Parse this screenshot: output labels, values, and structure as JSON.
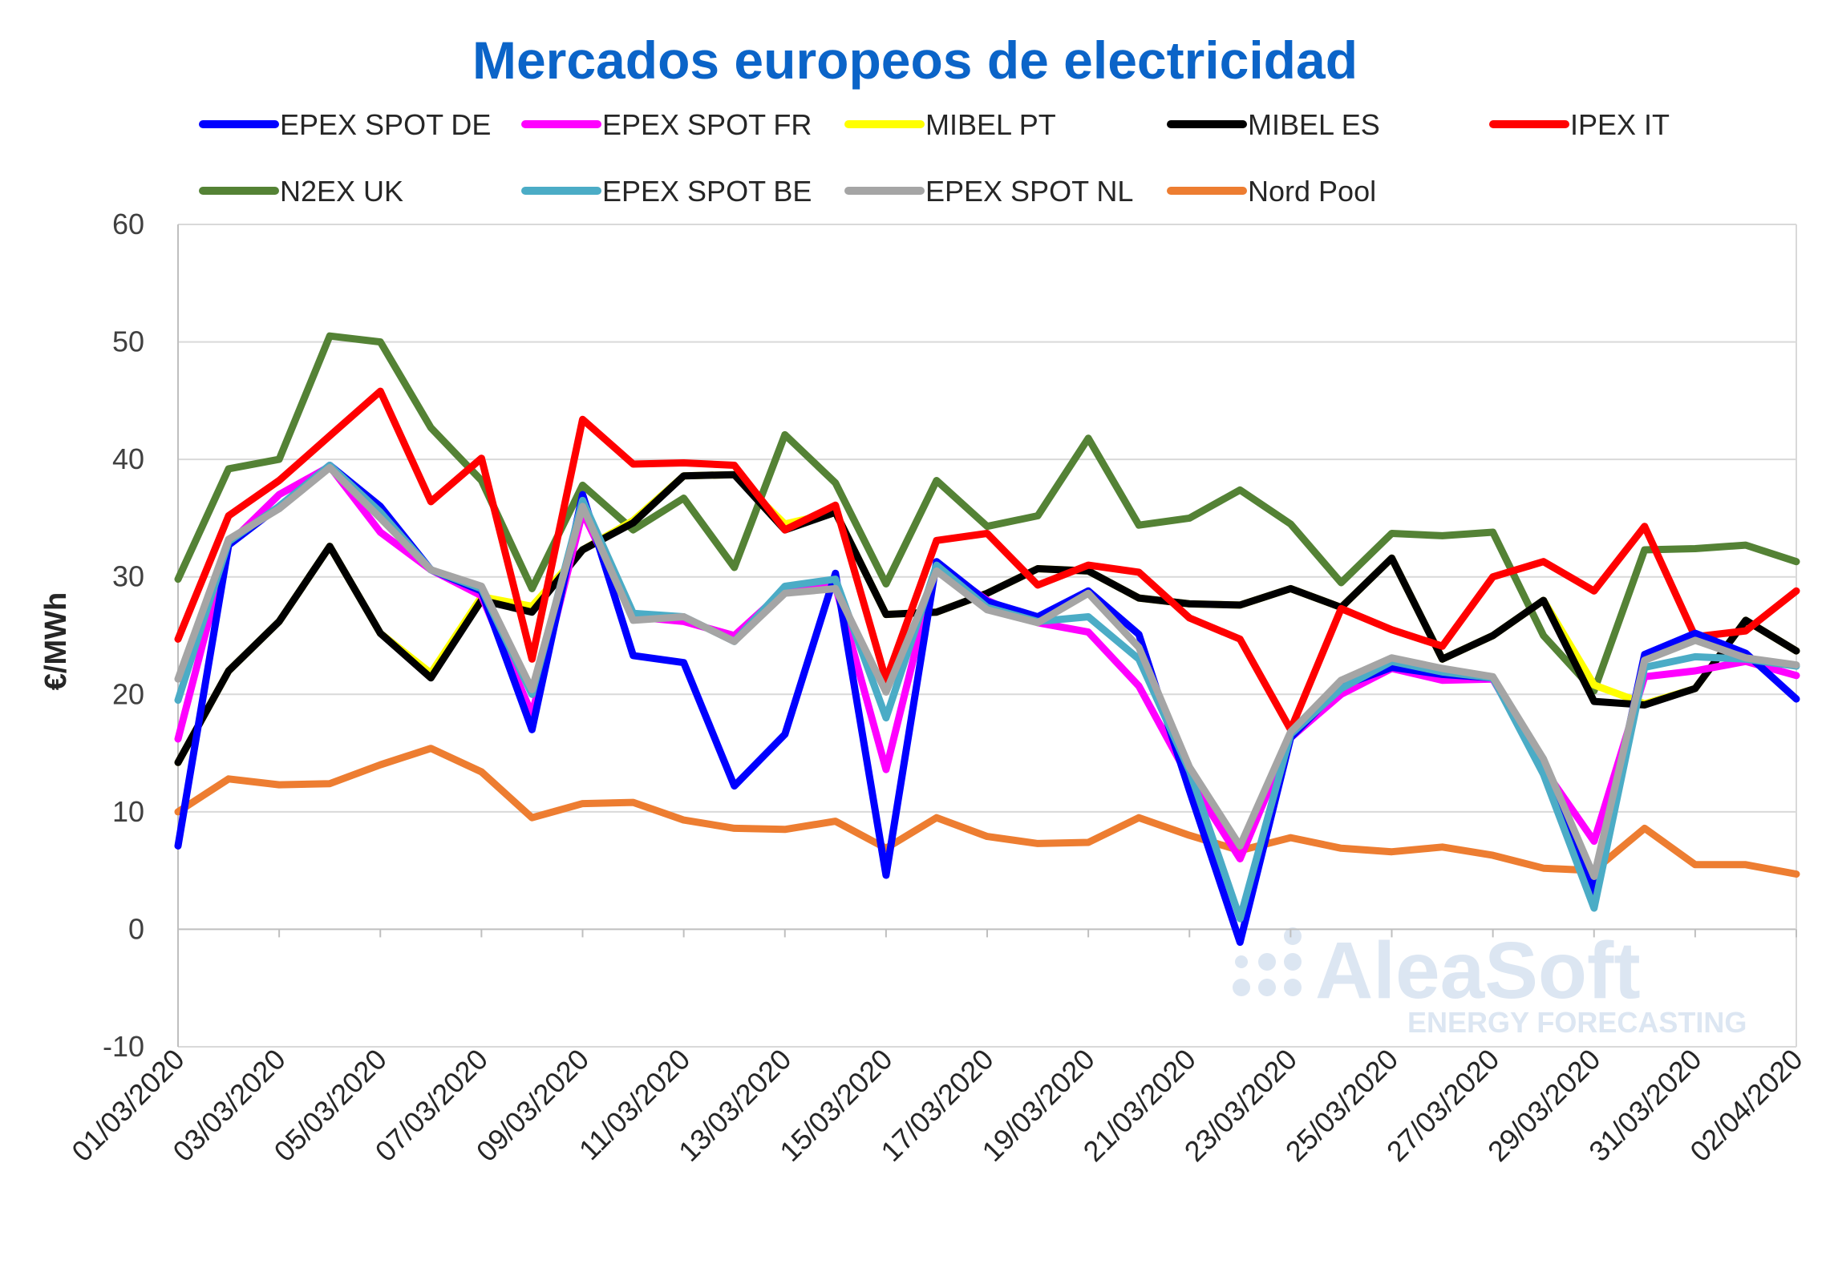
{
  "chart_data": {
    "type": "line",
    "title": "Mercados europeos de electricidad",
    "ylabel": "€/MWh",
    "xlabel": "",
    "ylim": [
      -10,
      60
    ],
    "yticks": [
      -10,
      0,
      10,
      20,
      30,
      40,
      50,
      60
    ],
    "grid": true,
    "legend_position": "top",
    "x": [
      "01/03/2020",
      "02/03/2020",
      "03/03/2020",
      "04/03/2020",
      "05/03/2020",
      "06/03/2020",
      "07/03/2020",
      "08/03/2020",
      "09/03/2020",
      "10/03/2020",
      "11/03/2020",
      "12/03/2020",
      "13/03/2020",
      "14/03/2020",
      "15/03/2020",
      "16/03/2020",
      "17/03/2020",
      "18/03/2020",
      "19/03/2020",
      "20/03/2020",
      "21/03/2020",
      "22/03/2020",
      "23/03/2020",
      "24/03/2020",
      "25/03/2020",
      "26/03/2020",
      "27/03/2020",
      "28/03/2020",
      "29/03/2020",
      "30/03/2020",
      "31/03/2020",
      "01/04/2020",
      "02/04/2020"
    ],
    "xtick_labels": [
      "01/03/2020",
      "03/03/2020",
      "05/03/2020",
      "07/03/2020",
      "09/03/2020",
      "11/03/2020",
      "13/03/2020",
      "15/03/2020",
      "17/03/2020",
      "19/03/2020",
      "21/03/2020",
      "23/03/2020",
      "25/03/2020",
      "27/03/2020",
      "29/03/2020",
      "31/03/2020",
      "02/04/2020"
    ],
    "series": [
      {
        "name": "Nord Pool",
        "color": "#ed7d31",
        "values": [
          10,
          12.8,
          12.3,
          12.4,
          14,
          15.4,
          13.4,
          9.5,
          10.7,
          10.8,
          9.3,
          8.6,
          8.5,
          9.2,
          6.9,
          9.5,
          7.9,
          7.3,
          7.4,
          9.5,
          8,
          6.7,
          7.8,
          6.9,
          6.6,
          7,
          6.3,
          5.2,
          5,
          8.6,
          5.5,
          5.5,
          4.7
        ]
      },
      {
        "name": "N2EX UK",
        "color": "#548235",
        "values": [
          29.8,
          39.2,
          40,
          50.5,
          50,
          42.7,
          38.2,
          29,
          37.8,
          34,
          36.7,
          30.8,
          42.1,
          38,
          29.4,
          38.2,
          34.3,
          35.2,
          41.8,
          34.4,
          35,
          37.4,
          34.5,
          29.5,
          33.7,
          33.5,
          33.8,
          25,
          20.3,
          32.3,
          32.4,
          32.7,
          31.3
        ]
      },
      {
        "name": "MIBEL PT",
        "color": "#ffff00",
        "values": [
          14.2,
          22,
          26.2,
          32.6,
          25.2,
          21.8,
          28.3,
          27.5,
          32.3,
          34.8,
          38.6,
          38.7,
          34.5,
          35.5,
          26.8,
          27,
          28.6,
          30.7,
          30.5,
          28.2,
          27.7,
          27.6,
          29,
          27.4,
          31.6,
          23,
          25,
          28,
          20.8,
          19.2,
          20.5,
          26.3,
          23.7
        ]
      },
      {
        "name": "MIBEL ES",
        "color": "#000000",
        "values": [
          14.2,
          22,
          26.2,
          32.6,
          25.2,
          21.4,
          28,
          27,
          32.3,
          34.6,
          38.6,
          38.7,
          34,
          35.5,
          26.8,
          27,
          28.6,
          30.7,
          30.5,
          28.2,
          27.7,
          27.6,
          29,
          27.4,
          31.6,
          23,
          25,
          28,
          19.4,
          19.1,
          20.5,
          26.3,
          23.7
        ]
      },
      {
        "name": "IPEX IT",
        "color": "#ff0000",
        "values": [
          24.7,
          35.2,
          38.2,
          42,
          45.8,
          36.4,
          40.1,
          23,
          43.4,
          39.6,
          39.7,
          39.5,
          34,
          36.1,
          21.2,
          33.1,
          33.7,
          29.3,
          31,
          30.4,
          26.5,
          24.7,
          17,
          27.3,
          25.5,
          24.1,
          30,
          31.3,
          28.8,
          34.3,
          24.9,
          25.4,
          28.8
        ]
      },
      {
        "name": "EPEX SPOT FR",
        "color": "#ff00ff",
        "values": [
          16.2,
          32.8,
          37,
          39.4,
          33.8,
          30.6,
          28.4,
          18.3,
          35.5,
          26.6,
          26.2,
          25,
          28.9,
          29.2,
          13.6,
          31,
          28,
          26.1,
          25.3,
          20.7,
          12.8,
          6,
          16.3,
          20,
          22.2,
          21.2,
          21.3,
          13.7,
          7.5,
          21.5,
          22,
          22.8,
          21.6
        ]
      },
      {
        "name": "EPEX SPOT DE",
        "color": "#0000ff",
        "values": [
          7.1,
          32.7,
          36,
          39.5,
          36,
          30.6,
          28.8,
          17,
          37,
          23.3,
          22.7,
          12.2,
          16.6,
          30.3,
          4.6,
          31.3,
          27.9,
          26.6,
          28.8,
          25.1,
          11.8,
          -1.1,
          16.3,
          20.7,
          22.3,
          21.7,
          21.4,
          13.5,
          3.2,
          23.4,
          25.2,
          23.5,
          19.6
        ]
      },
      {
        "name": "EPEX SPOT BE",
        "color": "#4bacc6",
        "values": [
          19.5,
          33,
          36,
          39.5,
          35.5,
          30.6,
          29,
          20,
          36.5,
          26.9,
          26.6,
          24.5,
          29.2,
          29.8,
          18,
          31,
          27.4,
          26.2,
          26.6,
          23,
          13.5,
          0.9,
          16.6,
          20.5,
          22.8,
          21.9,
          21.4,
          13.2,
          1.8,
          22.3,
          23.2,
          23,
          22.4
        ]
      },
      {
        "name": "EPEX SPOT NL",
        "color": "#a5a5a5",
        "values": [
          21.3,
          33.2,
          35.8,
          39.3,
          35,
          30.6,
          29.2,
          20.4,
          36,
          26.3,
          26.6,
          24.5,
          28.6,
          29,
          20.2,
          30.5,
          27.2,
          26.1,
          28.6,
          24,
          13.8,
          7.1,
          16.8,
          21.2,
          23.1,
          22.2,
          21.5,
          14.5,
          4.5,
          22.9,
          24.6,
          23.1,
          22.5
        ]
      }
    ],
    "legend": [
      {
        "name": "EPEX SPOT DE",
        "color": "#0000ff"
      },
      {
        "name": "EPEX SPOT FR",
        "color": "#ff00ff"
      },
      {
        "name": "MIBEL PT",
        "color": "#ffff00"
      },
      {
        "name": "MIBEL ES",
        "color": "#000000"
      },
      {
        "name": "IPEX IT",
        "color": "#ff0000"
      },
      {
        "name": "N2EX UK",
        "color": "#548235"
      },
      {
        "name": "EPEX SPOT BE",
        "color": "#4bacc6"
      },
      {
        "name": "EPEX SPOT NL",
        "color": "#a5a5a5"
      },
      {
        "name": "Nord Pool",
        "color": "#ed7d31"
      }
    ]
  },
  "watermark": {
    "name": "AleaSoft",
    "tagline": "ENERGY FORECASTING"
  },
  "colors": {
    "title": "#0b64c8",
    "grid": "#d9d9d9",
    "axis": "#bfbfbf"
  }
}
